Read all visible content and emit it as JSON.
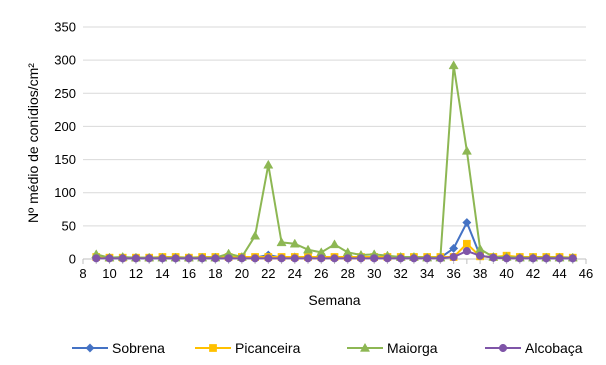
{
  "chart_data": {
    "type": "line",
    "title": "",
    "xlabel": "Semana",
    "ylabel": "Nº médio de conídios/cm²",
    "xlim": [
      8,
      46
    ],
    "ylim": [
      0,
      350
    ],
    "x_ticks": [
      8,
      10,
      12,
      14,
      16,
      18,
      20,
      22,
      24,
      26,
      28,
      30,
      32,
      34,
      36,
      38,
      40,
      42,
      44,
      46
    ],
    "y_ticks": [
      0,
      50,
      100,
      150,
      200,
      250,
      300,
      350
    ],
    "grid": "horizontal",
    "legend_position": "bottom",
    "series": [
      {
        "name": "Sobrena",
        "color": "#4472C4",
        "marker": "diamond",
        "x": [
          9,
          10,
          11,
          12,
          13,
          14,
          15,
          16,
          17,
          18,
          19,
          20,
          21,
          22,
          23,
          24,
          25,
          26,
          27,
          28,
          29,
          30,
          31,
          32,
          33,
          34,
          35,
          36,
          37,
          38,
          39,
          40,
          41,
          42,
          43,
          44,
          45
        ],
        "values": [
          2,
          1,
          1,
          1,
          1,
          1,
          1,
          1,
          1,
          1,
          1,
          2,
          2,
          6,
          2,
          3,
          2,
          2,
          2,
          2,
          2,
          2,
          2,
          2,
          2,
          2,
          2,
          16,
          55,
          5,
          2,
          2,
          2,
          1,
          1,
          1,
          1
        ]
      },
      {
        "name": "Picanceira",
        "color": "#FFC000",
        "marker": "square",
        "x": [
          9,
          10,
          11,
          12,
          13,
          14,
          15,
          16,
          17,
          18,
          19,
          20,
          21,
          22,
          23,
          24,
          25,
          26,
          27,
          28,
          29,
          30,
          31,
          32,
          33,
          34,
          35,
          36,
          37,
          38,
          39,
          40,
          41,
          42,
          43,
          44,
          45
        ],
        "values": [
          3,
          2,
          2,
          2,
          2,
          3,
          3,
          2,
          3,
          3,
          3,
          3,
          3,
          3,
          3,
          3,
          3,
          3,
          3,
          3,
          3,
          3,
          3,
          3,
          3,
          3,
          3,
          3,
          23,
          4,
          3,
          5,
          3,
          3,
          3,
          3,
          2
        ]
      },
      {
        "name": "Maiorga",
        "color": "#8DB753",
        "marker": "triangle",
        "x": [
          9,
          10,
          11,
          12,
          13,
          14,
          15,
          16,
          17,
          18,
          19,
          20,
          21,
          22,
          23,
          24,
          25,
          26,
          27,
          28,
          29,
          30,
          31,
          32,
          33,
          34,
          35,
          36,
          37,
          38,
          39,
          40,
          41,
          42,
          43,
          44,
          45
        ],
        "values": [
          7,
          2,
          3,
          2,
          2,
          2,
          2,
          2,
          2,
          2,
          8,
          3,
          35,
          142,
          25,
          23,
          14,
          10,
          22,
          10,
          6,
          7,
          5,
          3,
          3,
          2,
          2,
          292,
          163,
          15,
          3,
          3,
          2,
          2,
          2,
          2,
          2
        ]
      },
      {
        "name": "Alcobaça",
        "color": "#7F55A8",
        "marker": "circle",
        "x": [
          9,
          10,
          11,
          12,
          13,
          14,
          15,
          16,
          17,
          18,
          19,
          20,
          21,
          22,
          23,
          24,
          25,
          26,
          27,
          28,
          29,
          30,
          31,
          32,
          33,
          34,
          35,
          36,
          37,
          38,
          39,
          40,
          41,
          42,
          43,
          44,
          45
        ],
        "values": [
          1,
          1,
          1,
          1,
          1,
          1,
          1,
          1,
          1,
          1,
          1,
          1,
          1,
          1,
          1,
          1,
          1,
          1,
          1,
          1,
          1,
          1,
          1,
          1,
          1,
          1,
          1,
          3,
          12,
          5,
          2,
          1,
          1,
          1,
          1,
          1,
          1
        ]
      }
    ]
  }
}
